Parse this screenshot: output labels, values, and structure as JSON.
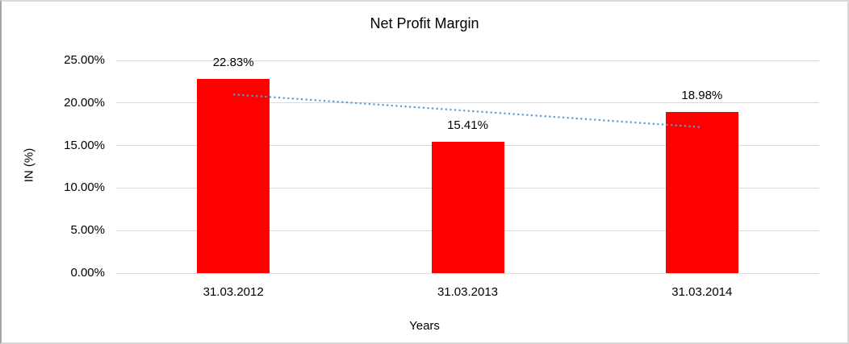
{
  "frame": {
    "background": "#ffffff",
    "border_color": "#d9d9d9"
  },
  "chart_data": {
    "type": "bar",
    "title": "Net Profit Margin",
    "xlabel": "Years",
    "ylabel": "IN (%)",
    "categories": [
      "31.03.2012",
      "31.03.2013",
      "31.03.2014"
    ],
    "values": [
      22.83,
      15.41,
      18.98
    ],
    "value_labels": [
      "22.83%",
      "15.41%",
      "18.98%"
    ],
    "ylim": [
      0,
      25
    ],
    "yticks": [
      0,
      5,
      10,
      15,
      20,
      25
    ],
    "ytick_labels": [
      "0.00%",
      "5.00%",
      "10.00%",
      "15.00%",
      "20.00%",
      "25.00%"
    ],
    "grid": true,
    "legend": "none",
    "bar_color": "#ff0000",
    "gridline_color": "#d9d9d9",
    "text_color": "#000000",
    "trendline": {
      "type": "linear",
      "style": "dotted",
      "color": "#5b9bd5",
      "start_value": 21.0,
      "end_value": 17.15
    }
  }
}
